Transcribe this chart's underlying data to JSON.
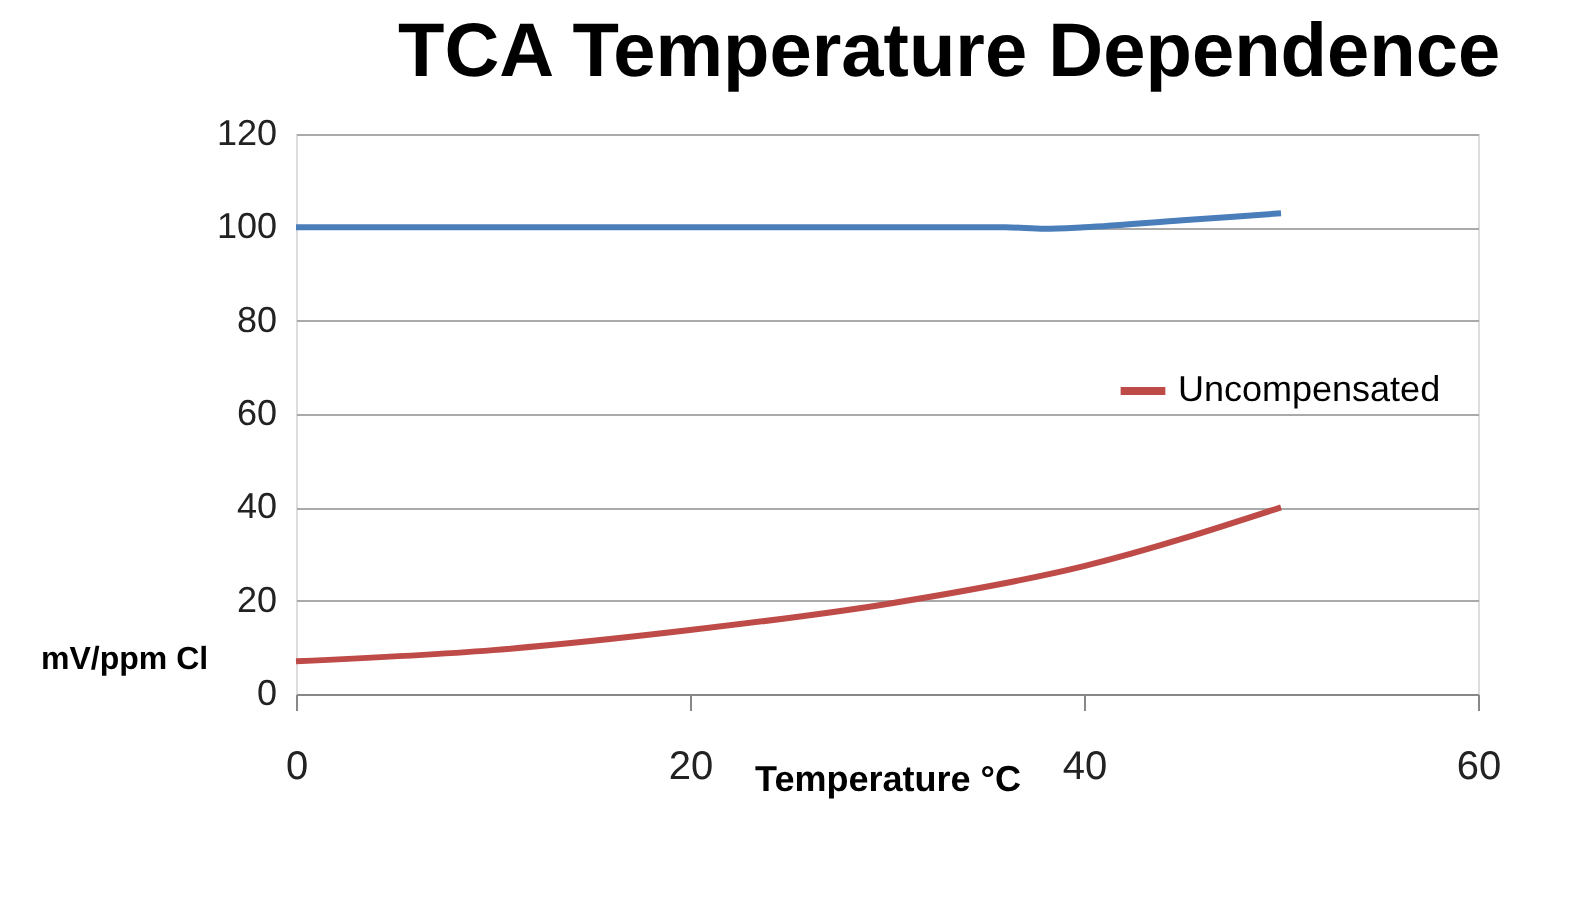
{
  "chart_data": {
    "type": "line",
    "title": "TCA Temperature Dependence",
    "xlabel": "Temperature °C",
    "ylabel": "mV/ppm Cl",
    "series": [
      {
        "color": "#4a7ebb",
        "x": [
          0,
          10,
          20,
          30,
          36,
          38,
          40,
          45,
          50
        ],
        "values": [
          100,
          100,
          100,
          100,
          100,
          99.7,
          100,
          101.5,
          103
        ]
      },
      {
        "name": "Uncompensated",
        "color": "#be4b48",
        "x": [
          0,
          10,
          20,
          30,
          40,
          50
        ],
        "values": [
          7,
          9.4,
          13.7,
          19.3,
          27.4,
          40
        ]
      }
    ],
    "xlim": [
      0,
      60
    ],
    "xticks": [
      0,
      20,
      40,
      60
    ],
    "ylim": [
      0,
      120
    ],
    "yticks": [
      0,
      20,
      40,
      60,
      80,
      100,
      120
    ],
    "grid": "y",
    "legend": "right",
    "marker": "none",
    "line_style": "solid"
  }
}
